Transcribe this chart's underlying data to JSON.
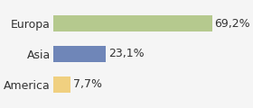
{
  "categories": [
    "America",
    "Asia",
    "Europa"
  ],
  "values": [
    7.7,
    23.1,
    69.2
  ],
  "labels": [
    "7,7%",
    "23,1%",
    "69,2%"
  ],
  "bar_colors": [
    "#f0d080",
    "#6f86b8",
    "#b5c98e"
  ],
  "background_color": "#f5f5f5",
  "xlim": [
    0,
    82
  ],
  "bar_height": 0.55,
  "label_fontsize": 9,
  "category_fontsize": 9
}
